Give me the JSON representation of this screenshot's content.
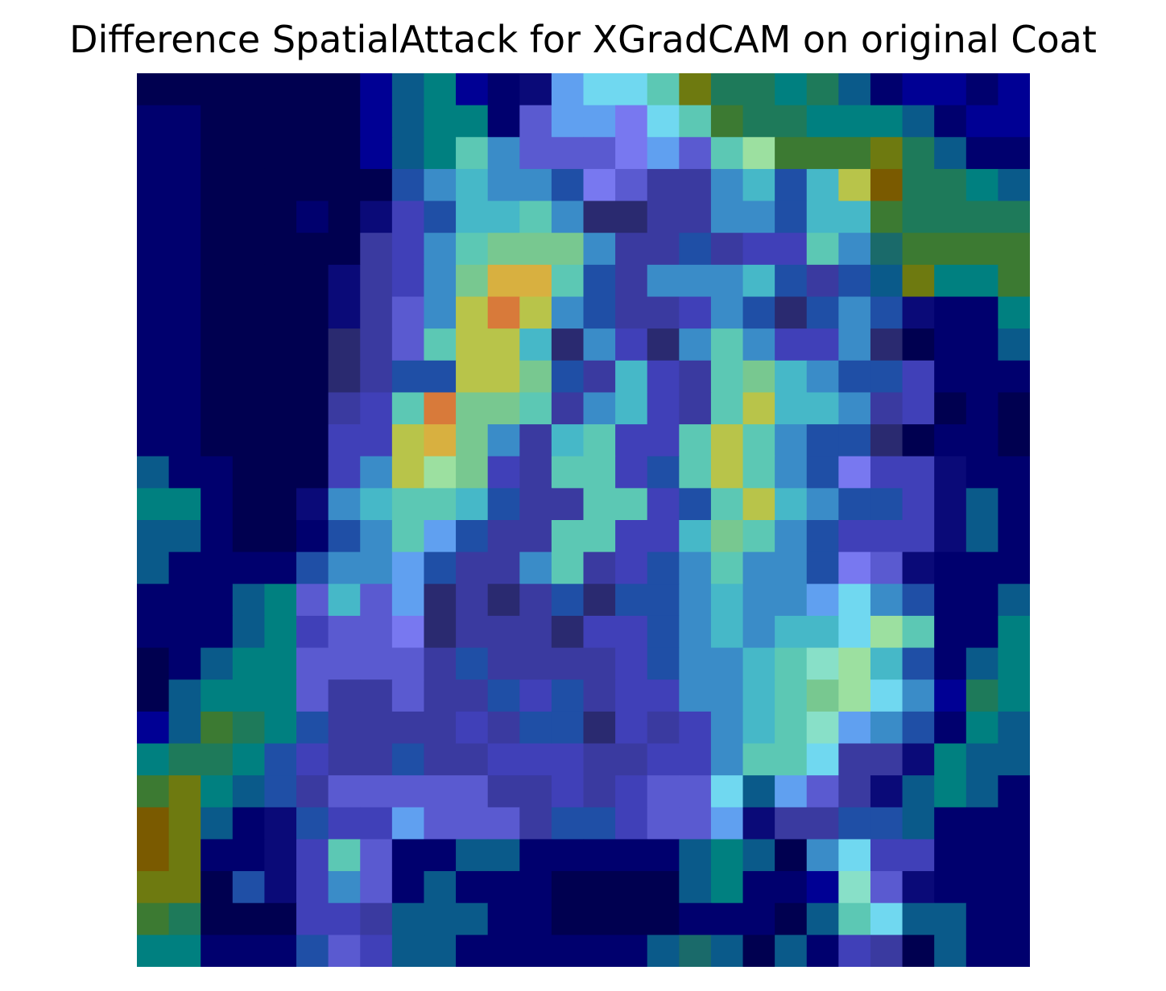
{
  "chart_data": {
    "type": "heatmap",
    "title": "Difference SpatialAttack for XGradCAM on original Coat",
    "rows": 28,
    "cols": 28,
    "axes_visible": false,
    "colorbar": false,
    "palette": {
      "a": "#000050",
      "b": "#00006e",
      "c": "#000094",
      "d": "#0a0a78",
      "e": "#1f4fa6",
      "f": "#4040b8",
      "g": "#3a3aa0",
      "h": "#5a5ad0",
      "i": "#3a8cc8",
      "j": "#46b8c8",
      "k": "#5cc8b4",
      "l": "#78c890",
      "m": "#b8c44a",
      "n": "#d8b040",
      "o": "#d87a3a",
      "p": "#9ce0a0",
      "q": "#70d8f0",
      "r": "#60a0f0",
      "s": "#7878f0",
      "t": "#008080",
      "u": "#1e7a5a",
      "v": "#3c7a32",
      "w": "#6e7a10",
      "x": "#7a5a00",
      "y": "#2a2a70",
      "z": "#0a5a8a",
      "A": "#1a6a6a",
      "B": "#88e0c8"
    },
    "rows_data": [
      "aaaaaaacztcbdrqqkwuutuzbccbc",
      "bbaaaaaczttbhrrsqkvuutttzbcc",
      "bbaaaaacztkihhhsrhkpvvvwuzbb",
      "bbaaaaaaeijiieshggijejmxuutz",
      "bbaaabadfejjkiyyggiiejjvuuuu",
      "bbaaaaagfikllliggegffkiAvvvv",
      "bbaaaadgfilnnkegiiijegezwttv",
      "bbaaaadghimomieggfieyeiedbbt",
      "bbaaaayghkmmjyifyikiffiyabbz",
      "bbaaaaygeemmlegjfgkljieefbbb",
      "bbaaaagfkollkgijfgkmjjigfaba",
      "bbaaaaffmnligjkffkmkieeyabba",
      "zbbaaafimplfgkkfekmkiesffdbb",
      "ttbaadijkkjeggkkfekmjieefdzb",
      "zzbaabeikreggkkffjlkiefffdzb",
      "zbbbbeiireggikgfeikiieshdbbb",
      "bbbzthjhrygygeyeeijiirqiebbz",
      "bbbztfhhsygggyffeijijjqpkbbt",
      "abztthhhhgeggggfeiijkBpjebzt",
      "azttthgghggefegffiijklpqicut",
      "czvuteggggfgeeyfgfijkBriebtz",
      "tuutefggeggfffggffikkqggdtzz",
      "vwtzeghhhhhggfgfhhqzrhgdztzb",
      "xwzbdeffrhhhgeefhhrdggeezbbb",
      "xwbbdfkhbbzzbbbbbztzaiqffbbb",
      "wwaedfihbzbbbaaaaztbbcBhdbbb",
      "vuaaaffgzzzbbaaaabbbazkqzzbb",
      "ttbbbehfzzbbbbbbzAzazbfgazbb"
    ]
  }
}
